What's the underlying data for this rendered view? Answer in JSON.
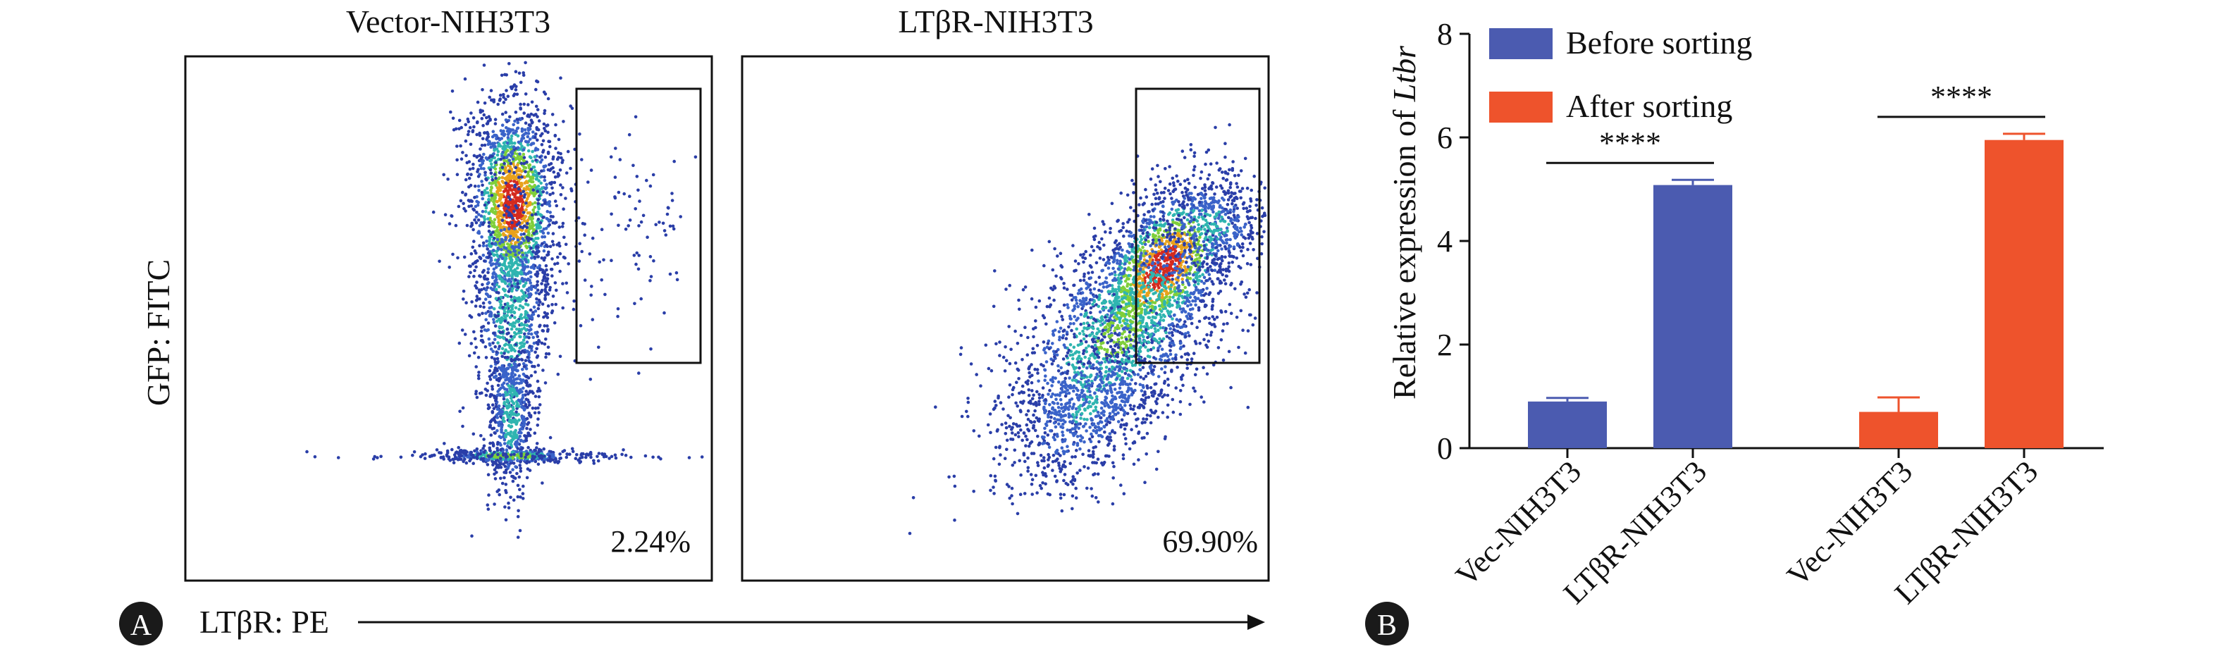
{
  "panel_a": {
    "badge": "A",
    "x_axis_label": "LTβR: PE",
    "y_axis_label": "GFP: FITC",
    "plots": [
      {
        "title": "Vector-NIH3T3",
        "percent": "2.24%",
        "gate_fraction": 0.0224
      },
      {
        "title": "LTβR-NIH3T3",
        "percent": "69.90%",
        "gate_fraction": 0.699
      }
    ]
  },
  "panel_b": {
    "badge": "B",
    "ylabel_prefix": "Relative expression of ",
    "ylabel_italic": "Ltbr",
    "significance": "****"
  },
  "colors": {
    "before": "#4b5bb0",
    "after": "#ee532c",
    "frame": "#111111"
  },
  "chart_data": {
    "type": "bar",
    "ylabel": "Relative expression of Ltbr",
    "ylim": [
      0,
      8
    ],
    "yticks": [
      0,
      2,
      4,
      6,
      8
    ],
    "legend_position": "top-left",
    "legend": [
      "Before sorting",
      "After sorting"
    ],
    "grid": false,
    "bars": [
      {
        "label": "Vec-NIH3T3",
        "series": "Before sorting",
        "value": 0.9,
        "error": 0.07
      },
      {
        "label": "LTβR-NIH3T3",
        "series": "Before sorting",
        "value": 5.08,
        "error": 0.1
      },
      {
        "label": "Vec-NIH3T3",
        "series": "After sorting",
        "value": 0.7,
        "error": 0.28
      },
      {
        "label": "LTβR-NIH3T3",
        "series": "After sorting",
        "value": 5.95,
        "error": 0.12
      }
    ],
    "significance": [
      {
        "between": [
          0,
          1
        ],
        "text": "****"
      },
      {
        "between": [
          2,
          3
        ],
        "text": "****"
      }
    ]
  }
}
